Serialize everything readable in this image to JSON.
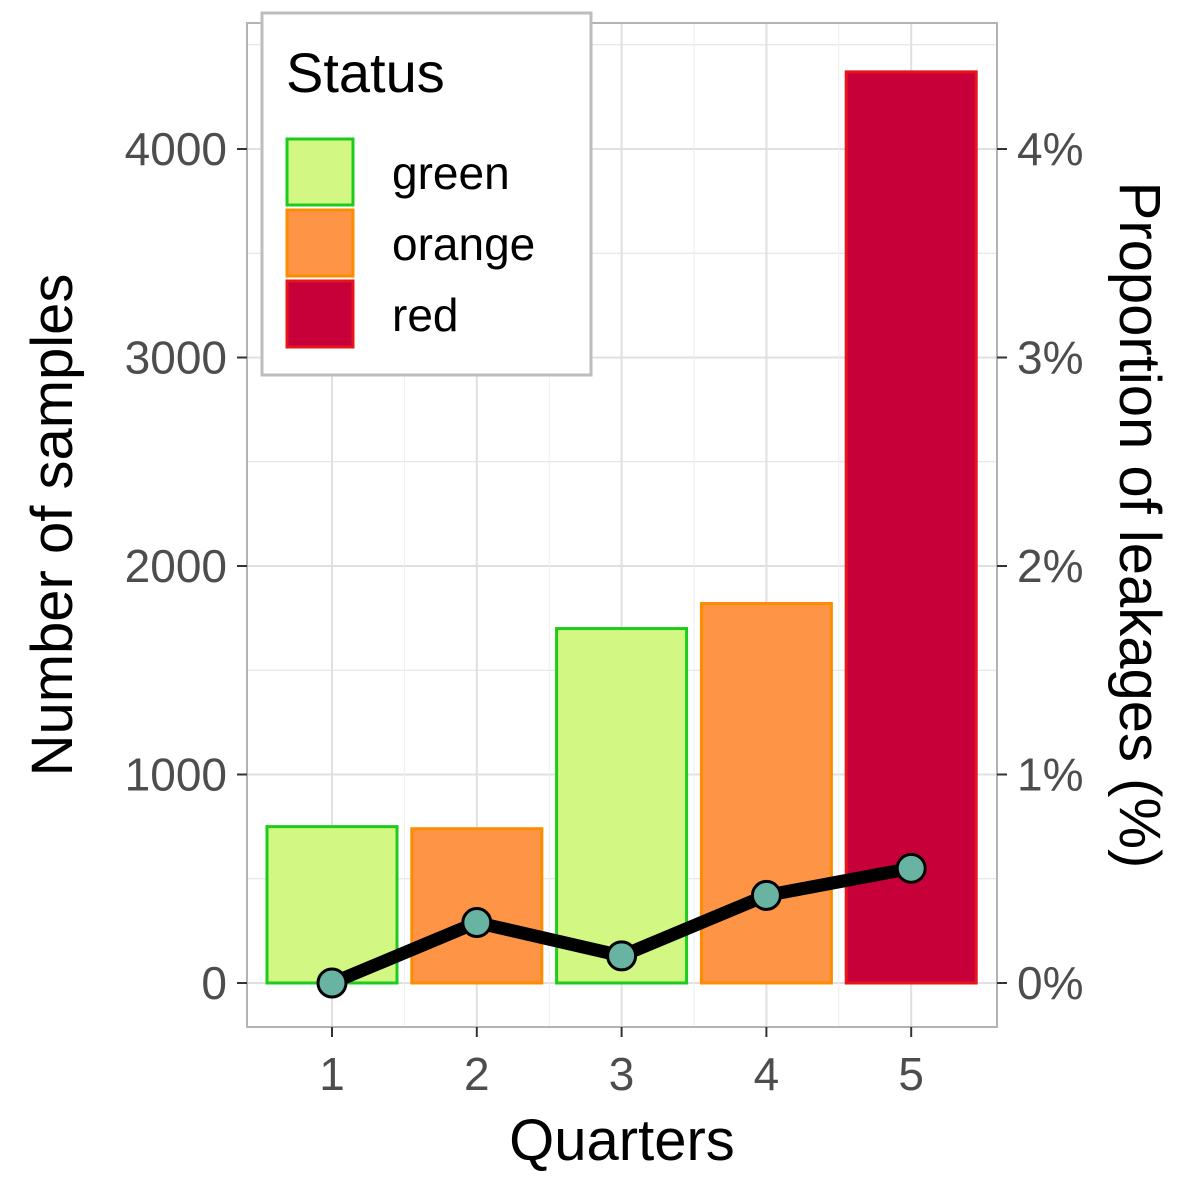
{
  "chart_data": {
    "type": "bar",
    "x": [
      1,
      2,
      3,
      4,
      5
    ],
    "xlabel": "Quarters",
    "ylabel": "Number of samples",
    "y2label": "Proportion of leakages (%)",
    "ylim": [
      -200,
      4600
    ],
    "y_ticks": [
      0,
      1000,
      2000,
      3000,
      4000
    ],
    "y_tick_labels": [
      "0",
      "1000",
      "2000",
      "3000",
      "4000"
    ],
    "y2_ticks": [
      0,
      1,
      2,
      3,
      4
    ],
    "y2_tick_labels": [
      "0%",
      "1%",
      "2%",
      "3%",
      "4%"
    ],
    "x_tick_labels": [
      "1",
      "2",
      "3",
      "4",
      "5"
    ],
    "grid": true,
    "legend": {
      "title": "Status",
      "placement": "top-left",
      "entries": [
        {
          "label": "green",
          "fill": "#d2f782",
          "stroke": "#1ccc1c"
        },
        {
          "label": "orange",
          "fill": "#fd9446",
          "stroke": "#fd8c00"
        },
        {
          "label": "red",
          "fill": "#c8003a",
          "stroke": "#e8141c"
        }
      ]
    },
    "bars": {
      "values": [
        750,
        740,
        1700,
        1820,
        4370
      ],
      "status": [
        "green",
        "orange",
        "green",
        "orange",
        "red"
      ]
    },
    "line": {
      "values_percent": [
        0.0,
        0.29,
        0.13,
        0.42,
        0.55
      ],
      "line_color": "#000000",
      "point_fill": "#69b3a2"
    }
  }
}
